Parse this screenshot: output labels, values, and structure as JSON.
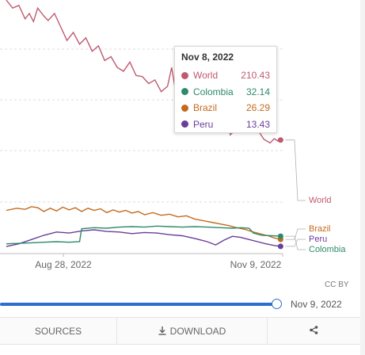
{
  "chart_data": {
    "type": "line",
    "x_range": [
      "2022-06-27",
      "2022-11-09"
    ],
    "y_range": [
      0,
      470
    ],
    "x_tick_labels": [
      "Aug 28, 2022",
      "Nov 9, 2022"
    ],
    "series": [
      {
        "name": "World",
        "color": "#c05a6f",
        "values": [
          [
            "2022-06-30",
            470
          ],
          [
            "2022-07-03",
            455
          ],
          [
            "2022-07-06",
            460
          ],
          [
            "2022-07-09",
            435
          ],
          [
            "2022-07-11",
            445
          ],
          [
            "2022-07-13",
            430
          ],
          [
            "2022-07-15",
            455
          ],
          [
            "2022-07-18",
            440
          ],
          [
            "2022-07-20",
            432
          ],
          [
            "2022-07-23",
            445
          ],
          [
            "2022-07-26",
            420
          ],
          [
            "2022-07-29",
            395
          ],
          [
            "2022-08-01",
            410
          ],
          [
            "2022-08-04",
            388
          ],
          [
            "2022-08-07",
            400
          ],
          [
            "2022-08-10",
            375
          ],
          [
            "2022-08-13",
            385
          ],
          [
            "2022-08-16",
            358
          ],
          [
            "2022-08-19",
            365
          ],
          [
            "2022-08-22",
            345
          ],
          [
            "2022-08-25",
            338
          ],
          [
            "2022-08-28",
            355
          ],
          [
            "2022-08-31",
            330
          ],
          [
            "2022-09-03",
            328
          ],
          [
            "2022-09-06",
            315
          ],
          [
            "2022-09-09",
            322
          ],
          [
            "2022-09-12",
            300
          ],
          [
            "2022-09-15",
            310
          ],
          [
            "2022-09-17",
            345
          ],
          [
            "2022-09-19",
            298
          ],
          [
            "2022-09-22",
            285
          ],
          [
            "2022-09-25",
            292
          ],
          [
            "2022-09-28",
            275
          ],
          [
            "2022-10-01",
            270
          ],
          [
            "2022-10-04",
            258
          ],
          [
            "2022-10-07",
            265
          ],
          [
            "2022-10-09",
            275
          ],
          [
            "2022-10-11",
            262
          ],
          [
            "2022-10-13",
            258
          ],
          [
            "2022-10-15",
            220
          ],
          [
            "2022-10-18",
            232
          ],
          [
            "2022-10-21",
            225
          ],
          [
            "2022-10-23",
            245
          ],
          [
            "2022-10-25",
            228
          ],
          [
            "2022-10-28",
            230
          ],
          [
            "2022-10-31",
            212
          ],
          [
            "2022-11-03",
            205
          ],
          [
            "2022-11-05",
            213
          ],
          [
            "2022-11-07",
            208
          ],
          [
            "2022-11-08",
            210.43
          ]
        ]
      },
      {
        "name": "Brazil",
        "color": "#c46a1e",
        "values": [
          [
            "2022-06-30",
            80
          ],
          [
            "2022-07-05",
            84
          ],
          [
            "2022-07-09",
            82
          ],
          [
            "2022-07-12",
            87
          ],
          [
            "2022-07-15",
            85
          ],
          [
            "2022-07-18",
            78
          ],
          [
            "2022-07-21",
            84
          ],
          [
            "2022-07-24",
            79
          ],
          [
            "2022-07-27",
            86
          ],
          [
            "2022-07-30",
            81
          ],
          [
            "2022-08-02",
            85
          ],
          [
            "2022-08-05",
            78
          ],
          [
            "2022-08-08",
            84
          ],
          [
            "2022-08-11",
            80
          ],
          [
            "2022-08-14",
            83
          ],
          [
            "2022-08-17",
            76
          ],
          [
            "2022-08-20",
            81
          ],
          [
            "2022-08-23",
            77
          ],
          [
            "2022-08-26",
            80
          ],
          [
            "2022-08-29",
            75
          ],
          [
            "2022-09-01",
            78
          ],
          [
            "2022-09-04",
            72
          ],
          [
            "2022-09-08",
            76
          ],
          [
            "2022-09-12",
            71
          ],
          [
            "2022-09-16",
            73
          ],
          [
            "2022-09-20",
            68
          ],
          [
            "2022-09-24",
            70
          ],
          [
            "2022-09-28",
            64
          ],
          [
            "2022-10-02",
            61
          ],
          [
            "2022-10-06",
            58
          ],
          [
            "2022-10-10",
            55
          ],
          [
            "2022-10-14",
            52
          ],
          [
            "2022-10-18",
            48
          ],
          [
            "2022-10-22",
            45
          ],
          [
            "2022-10-26",
            40
          ],
          [
            "2022-10-30",
            36
          ],
          [
            "2022-11-02",
            33
          ],
          [
            "2022-11-05",
            29
          ],
          [
            "2022-11-08",
            26.29
          ]
        ]
      },
      {
        "name": "Peru",
        "color": "#6a3d9a",
        "values": [
          [
            "2022-06-30",
            13
          ],
          [
            "2022-07-06",
            18
          ],
          [
            "2022-07-12",
            26
          ],
          [
            "2022-07-18",
            34
          ],
          [
            "2022-07-24",
            40
          ],
          [
            "2022-07-30",
            38
          ],
          [
            "2022-08-05",
            42
          ],
          [
            "2022-08-11",
            44
          ],
          [
            "2022-08-17",
            41
          ],
          [
            "2022-08-23",
            40
          ],
          [
            "2022-08-29",
            37
          ],
          [
            "2022-09-04",
            39
          ],
          [
            "2022-09-10",
            38
          ],
          [
            "2022-09-16",
            35
          ],
          [
            "2022-09-22",
            33
          ],
          [
            "2022-09-28",
            28
          ],
          [
            "2022-10-04",
            22
          ],
          [
            "2022-10-08",
            16
          ],
          [
            "2022-10-12",
            25
          ],
          [
            "2022-10-16",
            32
          ],
          [
            "2022-10-20",
            30
          ],
          [
            "2022-10-24",
            26
          ],
          [
            "2022-10-28",
            22
          ],
          [
            "2022-11-01",
            18
          ],
          [
            "2022-11-05",
            15
          ],
          [
            "2022-11-08",
            13.43
          ]
        ]
      },
      {
        "name": "Colombia",
        "color": "#2e8a6a",
        "values": [
          [
            "2022-06-30",
            18
          ],
          [
            "2022-07-06",
            19
          ],
          [
            "2022-07-12",
            20
          ],
          [
            "2022-07-18",
            21
          ],
          [
            "2022-07-24",
            22
          ],
          [
            "2022-07-30",
            21
          ],
          [
            "2022-08-04",
            22
          ],
          [
            "2022-08-05",
            46
          ],
          [
            "2022-08-11",
            48
          ],
          [
            "2022-08-17",
            47
          ],
          [
            "2022-08-23",
            49
          ],
          [
            "2022-08-29",
            50
          ],
          [
            "2022-09-04",
            49
          ],
          [
            "2022-09-10",
            51
          ],
          [
            "2022-09-16",
            50
          ],
          [
            "2022-09-22",
            49
          ],
          [
            "2022-09-28",
            50
          ],
          [
            "2022-10-04",
            49
          ],
          [
            "2022-10-10",
            48
          ],
          [
            "2022-10-16",
            47
          ],
          [
            "2022-10-20",
            48
          ],
          [
            "2022-10-24",
            47
          ],
          [
            "2022-10-26",
            38
          ],
          [
            "2022-10-30",
            34
          ],
          [
            "2022-11-04",
            33
          ],
          [
            "2022-11-08",
            32.14
          ]
        ]
      }
    ],
    "grid": true
  },
  "tooltip": {
    "date": "Nov 8, 2022",
    "rows": [
      {
        "name": "World",
        "value": "210.43",
        "color": "#c05a6f"
      },
      {
        "name": "Colombia",
        "value": "32.14",
        "color": "#2e8a6a"
      },
      {
        "name": "Brazil",
        "value": "26.29",
        "color": "#c46a1e"
      },
      {
        "name": "Peru",
        "value": "13.43",
        "color": "#6a3d9a"
      }
    ]
  },
  "license": "CC BY",
  "timeline": {
    "end_label": "Nov 9, 2022"
  },
  "footer": {
    "sources_label": "SOURCES",
    "download_label": "DOWNLOAD"
  }
}
